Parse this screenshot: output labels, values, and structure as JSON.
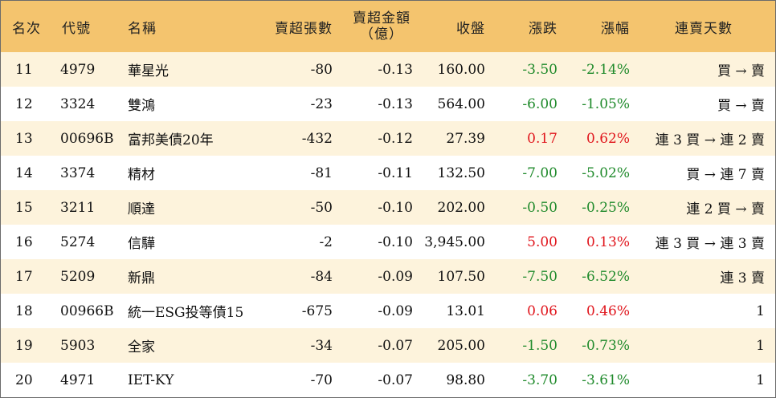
{
  "headers": {
    "rank": "名次",
    "code": "代號",
    "name": "名稱",
    "lots": "賣超張數",
    "amount_l1": "賣超金額",
    "amount_l2": "（億）",
    "close": "收盤",
    "change": "漲跌",
    "pct": "漲幅",
    "days": "連賣天數"
  },
  "colors": {
    "header_bg": "#f4c46e",
    "odd_row_bg": "#fdf3dc",
    "up": "#e0151c",
    "down": "#1f8a2b"
  },
  "rows": [
    {
      "rank": "11",
      "code": "4979",
      "name": "華星光",
      "lots": "-80",
      "amount": "-0.13",
      "close": "160.00",
      "change": "-3.50",
      "pct": "-2.14%",
      "dir": "down",
      "days": "買 → 賣"
    },
    {
      "rank": "12",
      "code": "3324",
      "name": "雙鴻",
      "lots": "-23",
      "amount": "-0.13",
      "close": "564.00",
      "change": "-6.00",
      "pct": "-1.05%",
      "dir": "down",
      "days": "買 → 賣"
    },
    {
      "rank": "13",
      "code": "00696B",
      "name": "富邦美債20年",
      "lots": "-432",
      "amount": "-0.12",
      "close": "27.39",
      "change": "0.17",
      "pct": "0.62%",
      "dir": "up",
      "days": "連 3 買 → 連 2 賣"
    },
    {
      "rank": "14",
      "code": "3374",
      "name": "精材",
      "lots": "-81",
      "amount": "-0.11",
      "close": "132.50",
      "change": "-7.00",
      "pct": "-5.02%",
      "dir": "down",
      "days": "買 → 連 7 賣"
    },
    {
      "rank": "15",
      "code": "3211",
      "name": "順達",
      "lots": "-50",
      "amount": "-0.10",
      "close": "202.00",
      "change": "-0.50",
      "pct": "-0.25%",
      "dir": "down",
      "days": "連 2 買 → 賣"
    },
    {
      "rank": "16",
      "code": "5274",
      "name": "信驊",
      "lots": "-2",
      "amount": "-0.10",
      "close": "3,945.00",
      "change": "5.00",
      "pct": "0.13%",
      "dir": "up",
      "days": "連 3 買 → 連 3 賣"
    },
    {
      "rank": "17",
      "code": "5209",
      "name": "新鼎",
      "lots": "-84",
      "amount": "-0.09",
      "close": "107.50",
      "change": "-7.50",
      "pct": "-6.52%",
      "dir": "down",
      "days": "連 3 賣"
    },
    {
      "rank": "18",
      "code": "00966B",
      "name": "統一ESG投等債15",
      "lots": "-675",
      "amount": "-0.09",
      "close": "13.01",
      "change": "0.06",
      "pct": "0.46%",
      "dir": "up",
      "days": "1"
    },
    {
      "rank": "19",
      "code": "5903",
      "name": "全家",
      "lots": "-34",
      "amount": "-0.07",
      "close": "205.00",
      "change": "-1.50",
      "pct": "-0.73%",
      "dir": "down",
      "days": "1"
    },
    {
      "rank": "20",
      "code": "4971",
      "name": "IET-KY",
      "lots": "-70",
      "amount": "-0.07",
      "close": "98.80",
      "change": "-3.70",
      "pct": "-3.61%",
      "dir": "down",
      "days": "1"
    }
  ]
}
